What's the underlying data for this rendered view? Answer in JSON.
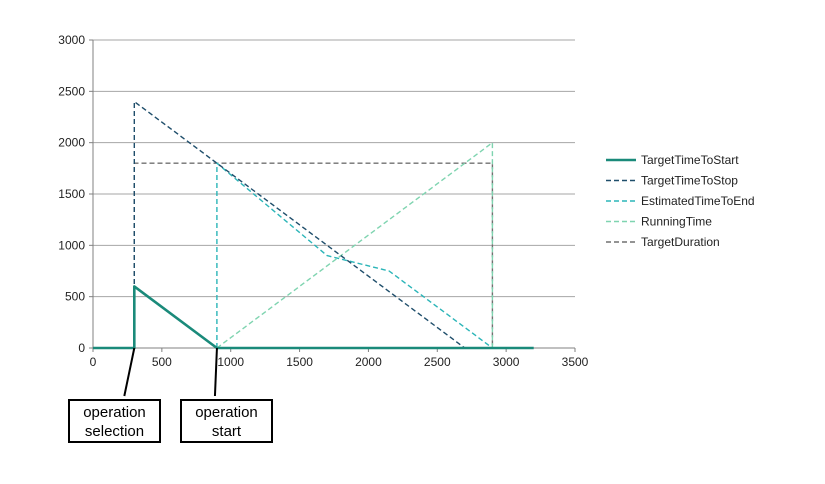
{
  "chart_data": {
    "type": "line",
    "xlim": [
      0,
      3500
    ],
    "ylim": [
      0,
      3000
    ],
    "x_ticks": [
      0,
      500,
      1000,
      1500,
      2000,
      2500,
      3000,
      3500
    ],
    "y_ticks": [
      0,
      500,
      1000,
      1500,
      2000,
      2500,
      3000
    ],
    "grid": "horizontal",
    "legend_position": "right",
    "series": [
      {
        "name": "TargetTimeToStart",
        "color": "#1a8a7a",
        "dash": "solid",
        "points": [
          [
            0,
            0
          ],
          [
            300,
            0
          ],
          [
            300,
            600
          ],
          [
            900,
            0
          ],
          [
            3200,
            0
          ]
        ]
      },
      {
        "name": "TargetTimeToStop",
        "color": "#1f4e6b",
        "dash": "dashed",
        "points": [
          [
            300,
            0
          ],
          [
            300,
            2400
          ],
          [
            2700,
            0
          ]
        ]
      },
      {
        "name": "EstimatedTimeToEnd",
        "color": "#2bb5b8",
        "dash": "dashed",
        "points": [
          [
            900,
            0
          ],
          [
            900,
            1800
          ],
          [
            1700,
            900
          ],
          [
            2150,
            750
          ],
          [
            2900,
            0
          ]
        ]
      },
      {
        "name": "RunningTime",
        "color": "#7fd4b0",
        "dash": "dashed",
        "points": [
          [
            900,
            0
          ],
          [
            2900,
            2000
          ],
          [
            2900,
            0
          ]
        ]
      },
      {
        "name": "TargetDuration",
        "color": "#707070",
        "dash": "dashed",
        "points": [
          [
            300,
            0
          ],
          [
            300,
            1800
          ],
          [
            2900,
            1800
          ],
          [
            2900,
            0
          ]
        ]
      }
    ]
  },
  "annotations": [
    {
      "lines": [
        "operation",
        "selection"
      ],
      "x": 300
    },
    {
      "lines": [
        "operation",
        "start"
      ],
      "x": 900
    }
  ]
}
